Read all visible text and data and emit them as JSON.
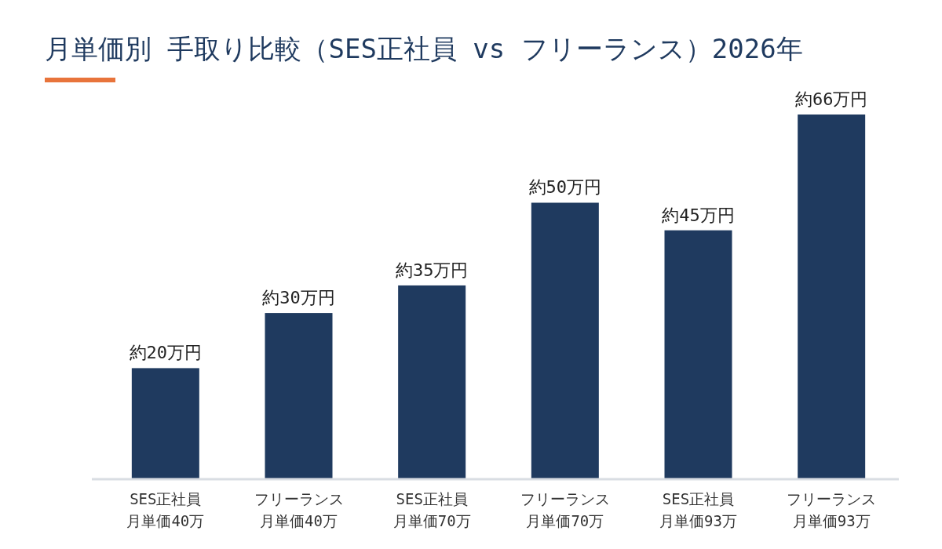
{
  "chart_data": {
    "type": "bar",
    "title": "月単価別 手取り比較（SES正社員 vs フリーランス）2026年",
    "categories": [
      "SES正社員月単価40万",
      "フリーランス月単価40万",
      "SES正社員月単価70万",
      "フリーランス月単価70万",
      "SES正社員月単価93万",
      "フリーランス月単価93万"
    ],
    "values": [
      20,
      30,
      35,
      50,
      45,
      66
    ],
    "value_labels": [
      "約20万円",
      "約30万円",
      "約35万円",
      "約50万円",
      "約45万円",
      "約66万円"
    ],
    "color": "#1f3a5f"
  }
}
